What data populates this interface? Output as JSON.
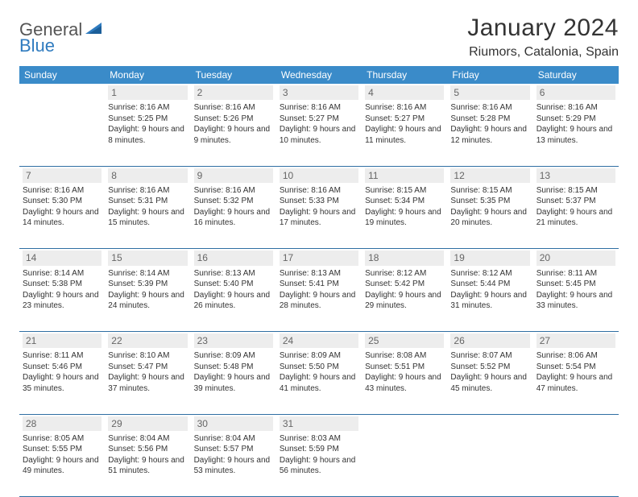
{
  "logo": {
    "part1": "General",
    "part2": "Blue"
  },
  "title": "January 2024",
  "location": "Riumors, Catalonia, Spain",
  "colors": {
    "header_bg": "#3a8bc9",
    "rule": "#2f6fa3",
    "daynum_bg": "#ededed",
    "logo_accent": "#2f7bbf"
  },
  "weekdays": [
    "Sunday",
    "Monday",
    "Tuesday",
    "Wednesday",
    "Thursday",
    "Friday",
    "Saturday"
  ],
  "weeks": [
    [
      null,
      {
        "n": "1",
        "sr": "8:16 AM",
        "ss": "5:25 PM",
        "dl": "9 hours and 8 minutes."
      },
      {
        "n": "2",
        "sr": "8:16 AM",
        "ss": "5:26 PM",
        "dl": "9 hours and 9 minutes."
      },
      {
        "n": "3",
        "sr": "8:16 AM",
        "ss": "5:27 PM",
        "dl": "9 hours and 10 minutes."
      },
      {
        "n": "4",
        "sr": "8:16 AM",
        "ss": "5:27 PM",
        "dl": "9 hours and 11 minutes."
      },
      {
        "n": "5",
        "sr": "8:16 AM",
        "ss": "5:28 PM",
        "dl": "9 hours and 12 minutes."
      },
      {
        "n": "6",
        "sr": "8:16 AM",
        "ss": "5:29 PM",
        "dl": "9 hours and 13 minutes."
      }
    ],
    [
      {
        "n": "7",
        "sr": "8:16 AM",
        "ss": "5:30 PM",
        "dl": "9 hours and 14 minutes."
      },
      {
        "n": "8",
        "sr": "8:16 AM",
        "ss": "5:31 PM",
        "dl": "9 hours and 15 minutes."
      },
      {
        "n": "9",
        "sr": "8:16 AM",
        "ss": "5:32 PM",
        "dl": "9 hours and 16 minutes."
      },
      {
        "n": "10",
        "sr": "8:16 AM",
        "ss": "5:33 PM",
        "dl": "9 hours and 17 minutes."
      },
      {
        "n": "11",
        "sr": "8:15 AM",
        "ss": "5:34 PM",
        "dl": "9 hours and 19 minutes."
      },
      {
        "n": "12",
        "sr": "8:15 AM",
        "ss": "5:35 PM",
        "dl": "9 hours and 20 minutes."
      },
      {
        "n": "13",
        "sr": "8:15 AM",
        "ss": "5:37 PM",
        "dl": "9 hours and 21 minutes."
      }
    ],
    [
      {
        "n": "14",
        "sr": "8:14 AM",
        "ss": "5:38 PM",
        "dl": "9 hours and 23 minutes."
      },
      {
        "n": "15",
        "sr": "8:14 AM",
        "ss": "5:39 PM",
        "dl": "9 hours and 24 minutes."
      },
      {
        "n": "16",
        "sr": "8:13 AM",
        "ss": "5:40 PM",
        "dl": "9 hours and 26 minutes."
      },
      {
        "n": "17",
        "sr": "8:13 AM",
        "ss": "5:41 PM",
        "dl": "9 hours and 28 minutes."
      },
      {
        "n": "18",
        "sr": "8:12 AM",
        "ss": "5:42 PM",
        "dl": "9 hours and 29 minutes."
      },
      {
        "n": "19",
        "sr": "8:12 AM",
        "ss": "5:44 PM",
        "dl": "9 hours and 31 minutes."
      },
      {
        "n": "20",
        "sr": "8:11 AM",
        "ss": "5:45 PM",
        "dl": "9 hours and 33 minutes."
      }
    ],
    [
      {
        "n": "21",
        "sr": "8:11 AM",
        "ss": "5:46 PM",
        "dl": "9 hours and 35 minutes."
      },
      {
        "n": "22",
        "sr": "8:10 AM",
        "ss": "5:47 PM",
        "dl": "9 hours and 37 minutes."
      },
      {
        "n": "23",
        "sr": "8:09 AM",
        "ss": "5:48 PM",
        "dl": "9 hours and 39 minutes."
      },
      {
        "n": "24",
        "sr": "8:09 AM",
        "ss": "5:50 PM",
        "dl": "9 hours and 41 minutes."
      },
      {
        "n": "25",
        "sr": "8:08 AM",
        "ss": "5:51 PM",
        "dl": "9 hours and 43 minutes."
      },
      {
        "n": "26",
        "sr": "8:07 AM",
        "ss": "5:52 PM",
        "dl": "9 hours and 45 minutes."
      },
      {
        "n": "27",
        "sr": "8:06 AM",
        "ss": "5:54 PM",
        "dl": "9 hours and 47 minutes."
      }
    ],
    [
      {
        "n": "28",
        "sr": "8:05 AM",
        "ss": "5:55 PM",
        "dl": "9 hours and 49 minutes."
      },
      {
        "n": "29",
        "sr": "8:04 AM",
        "ss": "5:56 PM",
        "dl": "9 hours and 51 minutes."
      },
      {
        "n": "30",
        "sr": "8:04 AM",
        "ss": "5:57 PM",
        "dl": "9 hours and 53 minutes."
      },
      {
        "n": "31",
        "sr": "8:03 AM",
        "ss": "5:59 PM",
        "dl": "9 hours and 56 minutes."
      },
      null,
      null,
      null
    ]
  ],
  "labels": {
    "sunrise": "Sunrise: ",
    "sunset": "Sunset: ",
    "daylight": "Daylight: "
  }
}
